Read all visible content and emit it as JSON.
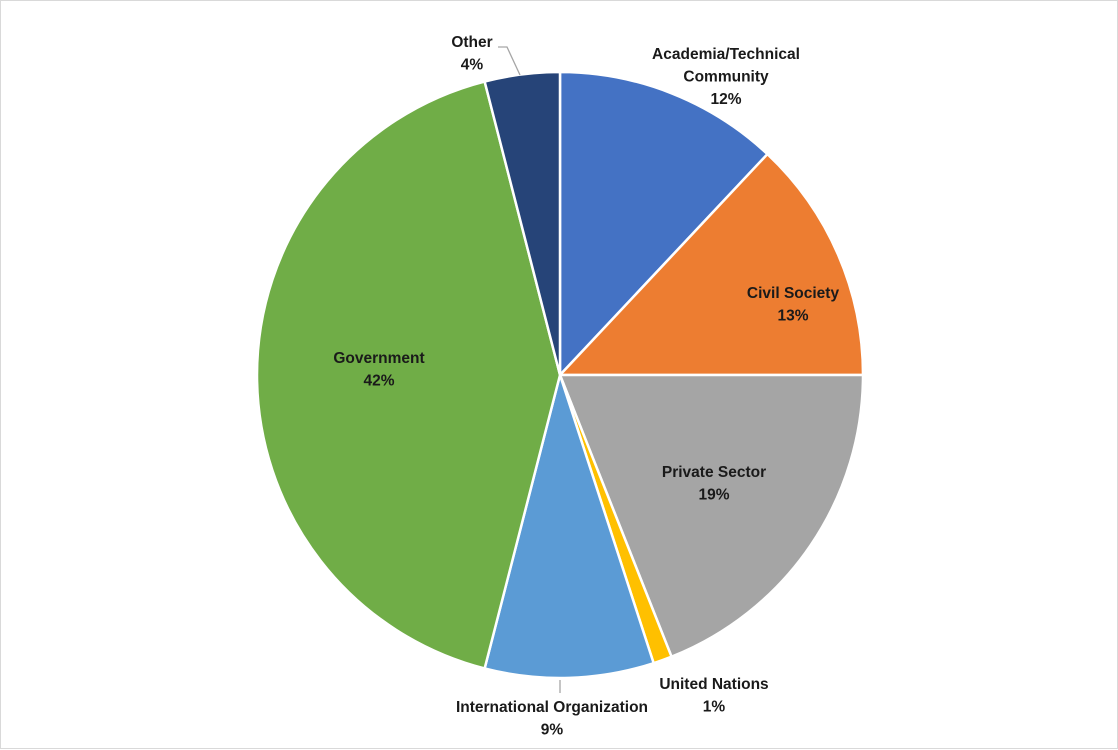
{
  "chart_data": {
    "type": "pie",
    "title": "",
    "slices": [
      {
        "label": "Academia/Technical Community",
        "label_lines": [
          "Academia/Technical",
          "Community"
        ],
        "value": 12,
        "display": "12%",
        "color": "#4472C4"
      },
      {
        "label": "Civil Society",
        "label_lines": [
          "Civil Society"
        ],
        "value": 13,
        "display": "13%",
        "color": "#ED7D31"
      },
      {
        "label": "Private Sector",
        "label_lines": [
          "Private Sector"
        ],
        "value": 19,
        "display": "19%",
        "color": "#A5A5A5"
      },
      {
        "label": "United Nations",
        "label_lines": [
          "United Nations"
        ],
        "value": 1,
        "display": "1%",
        "color": "#FFC000"
      },
      {
        "label": "International Organization",
        "label_lines": [
          "International Organization"
        ],
        "value": 9,
        "display": "9%",
        "color": "#5B9BD5"
      },
      {
        "label": "Government",
        "label_lines": [
          "Government"
        ],
        "value": 42,
        "display": "42%",
        "color": "#70AD47"
      },
      {
        "label": "Other",
        "label_lines": [
          "Other"
        ],
        "value": 4,
        "display": "4%",
        "color": "#264478"
      }
    ],
    "legend": "none",
    "data_labels": "category and percentage"
  }
}
